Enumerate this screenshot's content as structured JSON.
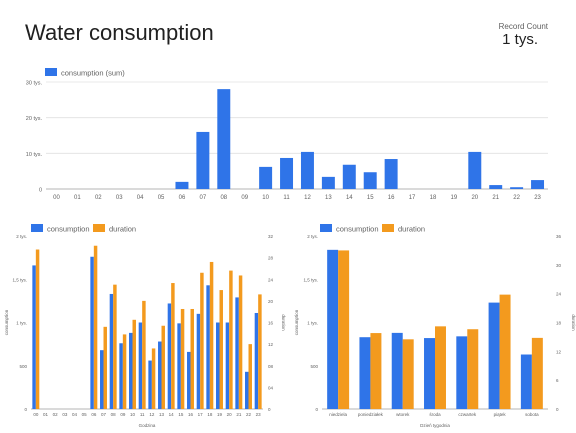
{
  "header": {
    "title": "Water consumption",
    "record_count_label": "Record Count",
    "record_count_value": "1 tys."
  },
  "colors": {
    "consumption": "#2f74e8",
    "duration": "#f39a1e",
    "grid": "#e0e0e0",
    "axis": "#9e9e9e",
    "text": "#616161"
  },
  "chart_data": [
    {
      "id": "top",
      "type": "bar",
      "title": "",
      "categories": [
        "00",
        "01",
        "02",
        "03",
        "04",
        "05",
        "06",
        "07",
        "08",
        "09",
        "10",
        "11",
        "12",
        "13",
        "14",
        "15",
        "16",
        "17",
        "18",
        "19",
        "20",
        "21",
        "22",
        "23"
      ],
      "series": [
        {
          "name": "consumption (sum)",
          "values": [
            0,
            0,
            0,
            0,
            0,
            0,
            2000,
            16000,
            28000,
            0,
            6200,
            8700,
            10400,
            3400,
            6800,
            4700,
            8400,
            0,
            0,
            0,
            10400,
            1100,
            500,
            2500
          ]
        }
      ],
      "ylim": [
        0,
        30000
      ],
      "yticks": [
        0,
        10000,
        20000,
        30000
      ],
      "ytick_labels": [
        "0",
        "10 tys.",
        "20 tys.",
        "30 tys."
      ],
      "legend": "top-left",
      "grid": true
    },
    {
      "id": "left",
      "type": "bar",
      "title": "",
      "xlabel": "Godzina",
      "ylabel": "consumption",
      "y2label": "duration",
      "categories": [
        "00",
        "01",
        "02",
        "03",
        "04",
        "05",
        "06",
        "07",
        "08",
        "09",
        "10",
        "11",
        "12",
        "13",
        "14",
        "15",
        "16",
        "17",
        "18",
        "19",
        "20",
        "21",
        "22",
        "23"
      ],
      "series": [
        {
          "name": "consumption",
          "axis": "left",
          "values": [
            1660,
            0,
            0,
            0,
            0,
            0,
            1760,
            680,
            1330,
            760,
            880,
            1000,
            560,
            780,
            1220,
            990,
            660,
            1100,
            1430,
            1000,
            1000,
            1290,
            430,
            1110
          ]
        },
        {
          "name": "duration",
          "axis": "right",
          "values": [
            29.5,
            0,
            0,
            0,
            0,
            0,
            30.2,
            15.2,
            23.0,
            13.8,
            16.5,
            20.0,
            11.2,
            15.4,
            23.3,
            18.5,
            18.5,
            25.2,
            27.2,
            22.0,
            25.6,
            24.7,
            12.0,
            21.2
          ]
        }
      ],
      "ylim": [
        0,
        2000
      ],
      "yticks": [
        0,
        500,
        1000,
        1500,
        2000
      ],
      "ytick_labels": [
        "0",
        "500",
        "1 tys.",
        "1,5 tys.",
        "2 tys."
      ],
      "y2lim": [
        0,
        32
      ],
      "y2ticks": [
        0,
        4,
        8,
        12,
        16,
        20,
        24,
        28,
        32
      ],
      "y2tick_labels": [
        "0",
        "04",
        "08",
        "12",
        "16",
        "20",
        "24",
        "28",
        "32"
      ],
      "legend": "top-left",
      "grid": false
    },
    {
      "id": "right",
      "type": "bar",
      "title": "",
      "xlabel": "Dzień tygodnia",
      "ylabel": "consumption",
      "y2label": "duration",
      "categories": [
        "niedziela",
        "poniedziałek",
        "wtorek",
        "środa",
        "czwartek",
        "piątek",
        "sobota"
      ],
      "series": [
        {
          "name": "consumption",
          "axis": "left",
          "values": [
            1840,
            830,
            880,
            820,
            840,
            1230,
            630
          ]
        },
        {
          "name": "duration",
          "axis": "right",
          "values": [
            33.0,
            15.8,
            14.5,
            17.2,
            16.6,
            23.8,
            14.8
          ]
        }
      ],
      "ylim": [
        0,
        2000
      ],
      "yticks": [
        0,
        500,
        1000,
        1500,
        2000
      ],
      "ytick_labels": [
        "0",
        "500",
        "1 tys.",
        "1,5 tys.",
        "2 tys."
      ],
      "y2lim": [
        0,
        36
      ],
      "y2ticks": [
        0,
        6,
        12,
        18,
        24,
        30,
        36
      ],
      "y2tick_labels": [
        "0",
        "6",
        "12",
        "18",
        "24",
        "30",
        "36"
      ],
      "legend": "top-left",
      "grid": false
    }
  ]
}
